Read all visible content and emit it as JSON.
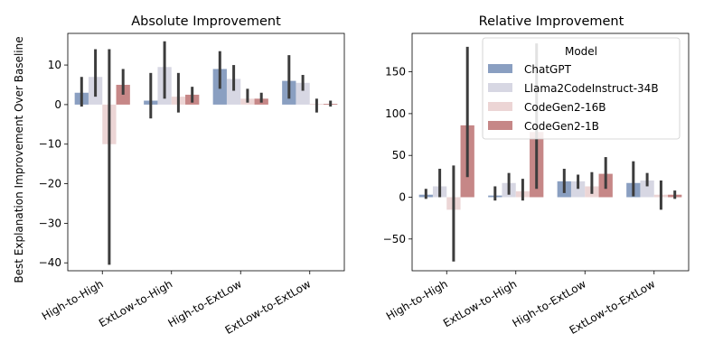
{
  "chart_data": [
    {
      "type": "bar",
      "title": "Absolute Improvement",
      "xlabel": "",
      "ylabel": "Best Explanation Improvement Over Baseline",
      "categories": [
        "High-to-High",
        "ExtLow-to-High",
        "High-to-ExtLow",
        "ExtLow-to-ExtLow"
      ],
      "ylim": [
        -42,
        18
      ],
      "yticks": [
        10,
        0,
        -10,
        -20,
        -30,
        -40
      ],
      "series": [
        {
          "name": "ChatGPT",
          "color": "#8a9fc1",
          "values": [
            3,
            1,
            9,
            6
          ],
          "ci_low": [
            -0.5,
            -3.5,
            4,
            1.5
          ],
          "ci_high": [
            7,
            8,
            13.5,
            12.5
          ]
        },
        {
          "name": "Llama2CodeInstruct-34B",
          "color": "#d7d7e3",
          "values": [
            7,
            9.5,
            6.5,
            5.5
          ],
          "ci_low": [
            2,
            1.5,
            3.5,
            3.5
          ],
          "ci_high": [
            14,
            16,
            10,
            7.5
          ]
        },
        {
          "name": "CodeGen2-16B",
          "color": "#ecd5d5",
          "values": [
            -10,
            2,
            1.5,
            0.2
          ],
          "ci_low": [
            -40.5,
            -2,
            0.5,
            -2
          ],
          "ci_high": [
            14,
            8,
            4,
            1.5
          ]
        },
        {
          "name": "CodeGen2-1B",
          "color": "#c68787",
          "values": [
            5,
            2.5,
            1.5,
            0.2
          ],
          "ci_low": [
            2.5,
            0.5,
            0.5,
            -0.5
          ],
          "ci_high": [
            9,
            4.5,
            3,
            1
          ]
        }
      ]
    },
    {
      "type": "bar",
      "title": "Relative Improvement",
      "xlabel": "",
      "ylabel": "",
      "categories": [
        "High-to-High",
        "ExtLow-to-High",
        "High-to-ExtLow",
        "ExtLow-to-ExtLow"
      ],
      "ylim": [
        -88,
        196
      ],
      "yticks": [
        150,
        100,
        50,
        0,
        -50
      ],
      "legend": {
        "title": "Model",
        "position": "top-right"
      },
      "series": [
        {
          "name": "ChatGPT",
          "color": "#8a9fc1",
          "values": [
            3,
            2,
            19,
            17
          ],
          "ci_low": [
            -2,
            -4,
            5,
            1
          ],
          "ci_high": [
            10,
            13,
            34,
            43
          ]
        },
        {
          "name": "Llama2CodeInstruct-34B",
          "color": "#d7d7e3",
          "values": [
            13,
            17,
            19,
            20
          ],
          "ci_low": [
            0,
            3,
            10,
            13
          ],
          "ci_high": [
            34,
            29,
            27,
            29
          ]
        },
        {
          "name": "CodeGen2-16B",
          "color": "#ecd5d5",
          "values": [
            -15,
            7,
            13,
            3
          ],
          "ci_low": [
            -77,
            -4,
            4,
            -15
          ],
          "ci_high": [
            38,
            22,
            30,
            20
          ]
        },
        {
          "name": "CodeGen2-1B",
          "color": "#c68787",
          "values": [
            86,
            78,
            28,
            3
          ],
          "ci_low": [
            24,
            10,
            10,
            -2
          ],
          "ci_high": [
            180,
            184,
            48,
            8
          ]
        }
      ]
    }
  ]
}
